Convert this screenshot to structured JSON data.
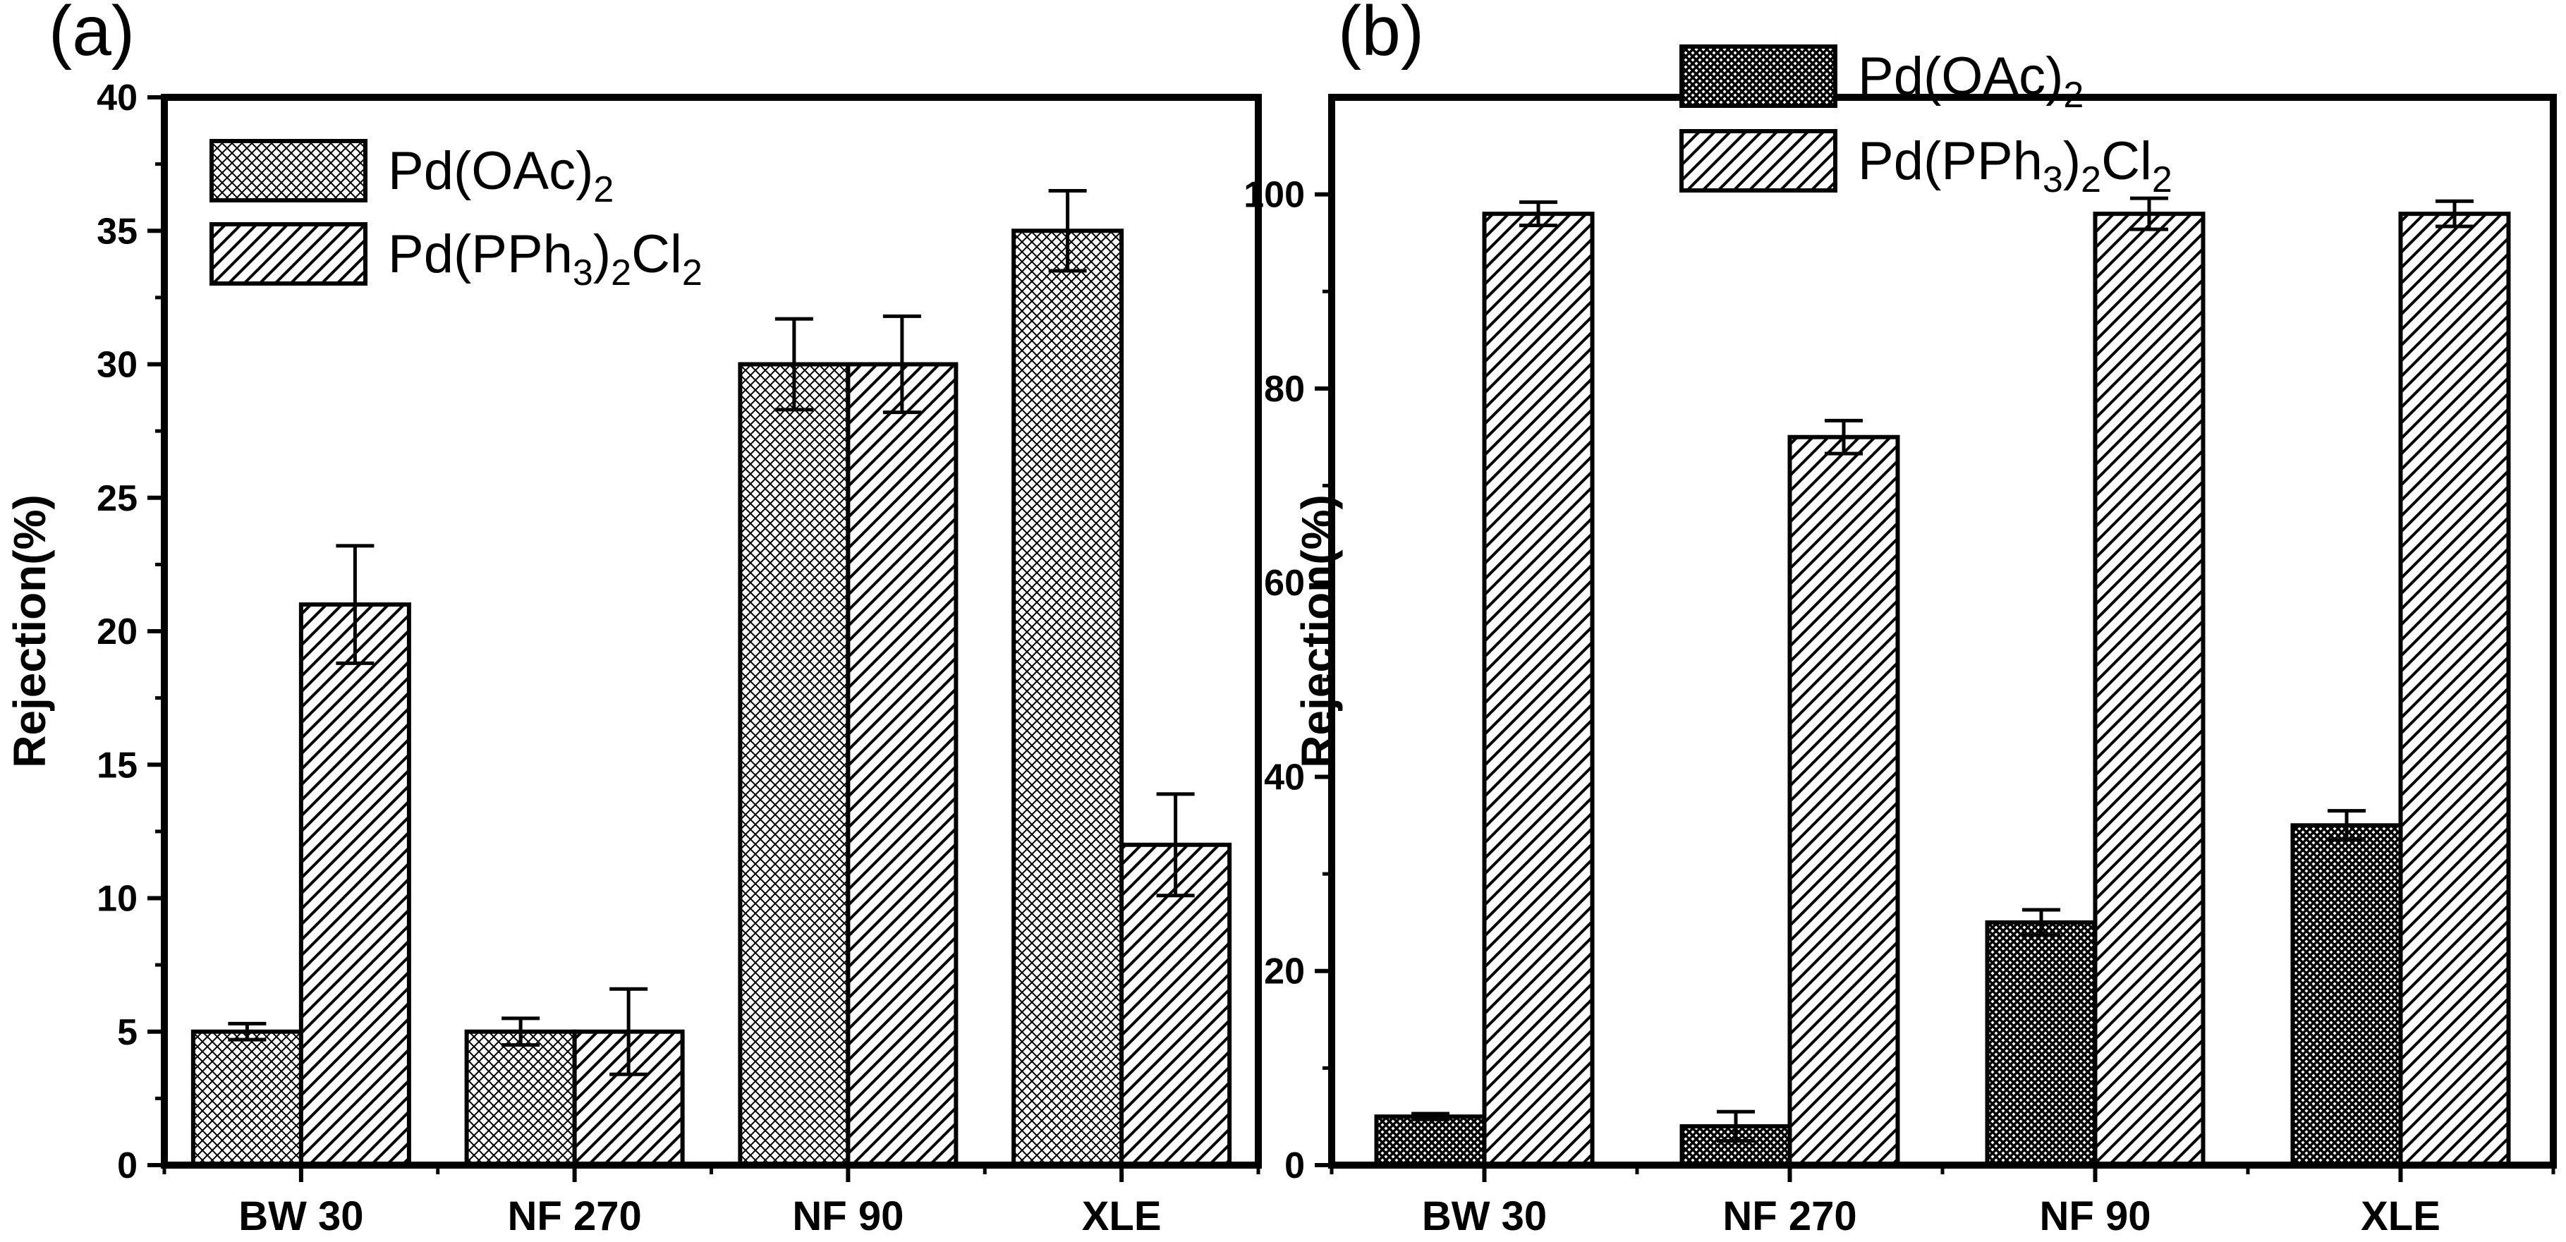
{
  "chart_data": [
    {
      "panel_label": "(a)",
      "type": "bar",
      "ylabel": "Rejection(%)",
      "xlabel": "",
      "categories": [
        "BW 30",
        "NF 270",
        "NF 90",
        "XLE"
      ],
      "ylim": [
        0,
        40
      ],
      "yticks": [
        0,
        5,
        10,
        15,
        20,
        25,
        30,
        35,
        40
      ],
      "ytick_labels": [
        "0",
        "5",
        "10",
        "15",
        "20",
        "25",
        "30",
        "35",
        "40"
      ],
      "legend_position": "top-left",
      "series": [
        {
          "name": "Pd(OAc)",
          "name_subscripts": [
            "2"
          ],
          "pattern": "crosshatch-light",
          "values": [
            5,
            5,
            30,
            35
          ],
          "errors": [
            0.3,
            0.5,
            1.7,
            1.5
          ]
        },
        {
          "name": "Pd(PPh)Cl",
          "name_subscripts": [
            "3",
            "2",
            "2"
          ],
          "pattern": "diagonal",
          "values": [
            21,
            5,
            30,
            12
          ],
          "errors": [
            2.2,
            1.6,
            1.8,
            1.9
          ]
        }
      ]
    },
    {
      "panel_label": "(b)",
      "type": "bar",
      "ylabel": "Rejection(%)",
      "xlabel": "",
      "categories": [
        "BW 30",
        "NF 270",
        "NF 90",
        "XLE"
      ],
      "ylim": [
        0,
        110
      ],
      "yticks": [
        0,
        20,
        40,
        60,
        80,
        100
      ],
      "ytick_labels": [
        "0",
        "20",
        "40",
        "60",
        "80",
        "100"
      ],
      "legend_position": "top-center",
      "series": [
        {
          "name": "Pd(OAc)",
          "name_subscripts": [
            "2"
          ],
          "pattern": "crosshatch-dense",
          "values": [
            5,
            4,
            25,
            35
          ],
          "errors": [
            0.3,
            1.5,
            1.3,
            1.5
          ]
        },
        {
          "name": "Pd(PPh)Cl",
          "name_subscripts": [
            "3",
            "2",
            "2"
          ],
          "pattern": "diagonal",
          "values": [
            98,
            75,
            98,
            98
          ],
          "errors": [
            1.2,
            1.7,
            1.6,
            1.3
          ]
        }
      ]
    }
  ]
}
